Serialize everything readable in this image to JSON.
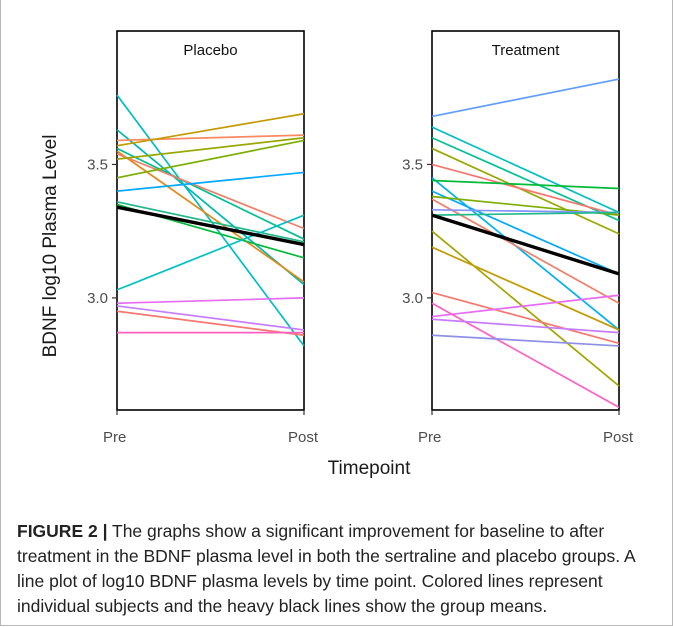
{
  "figure": {
    "ylabel": "BDNF log10 Plasma Level",
    "xlabel": "Timepoint",
    "colors": {
      "mean": "#000000",
      "panel_border": "#000000"
    }
  },
  "chart_data": [
    {
      "type": "line",
      "title": "Placebo",
      "categories": [
        "Pre",
        "Post"
      ],
      "ylim": [
        2.58,
        4.0
      ],
      "yticks": [
        3.0,
        3.5
      ],
      "ytick_labels": [
        "3.0",
        "3.5"
      ],
      "grid": false,
      "series": [
        {
          "color": "#00BFC4",
          "values": [
            3.76,
            2.82
          ]
        },
        {
          "color": "#00B8B0",
          "values": [
            3.63,
            3.05
          ]
        },
        {
          "color": "#00C094",
          "values": [
            3.56,
            3.22
          ]
        },
        {
          "color": "#FB8961",
          "values": [
            3.59,
            3.61
          ]
        },
        {
          "color": "#C49A00",
          "values": [
            3.57,
            3.69
          ]
        },
        {
          "color": "#E68613",
          "values": [
            3.55,
            3.06
          ]
        },
        {
          "color": "#F07F6A",
          "values": [
            3.54,
            3.26
          ]
        },
        {
          "color": "#99A800",
          "values": [
            3.52,
            3.6
          ]
        },
        {
          "color": "#7CAE00",
          "values": [
            3.45,
            3.59
          ]
        },
        {
          "color": "#00A9FF",
          "values": [
            3.4,
            3.47
          ]
        },
        {
          "color": "#00BA38",
          "values": [
            3.35,
            3.15
          ]
        },
        {
          "color": "#21B98A",
          "values": [
            3.36,
            3.21
          ]
        },
        {
          "color": "#00C1C6",
          "values": [
            3.03,
            3.31
          ]
        },
        {
          "color": "#E76BF3",
          "values": [
            2.98,
            3.0
          ]
        },
        {
          "color": "#C77CFF",
          "values": [
            2.97,
            2.88
          ]
        },
        {
          "color": "#F8766D",
          "values": [
            2.95,
            2.86
          ]
        },
        {
          "color": "#FF61C3",
          "values": [
            2.87,
            2.87
          ]
        },
        {
          "color": "#000000",
          "values": [
            3.34,
            3.2
          ],
          "mean": true
        }
      ]
    },
    {
      "type": "line",
      "title": "Treatment",
      "categories": [
        "Pre",
        "Post"
      ],
      "ylim": [
        2.58,
        4.0
      ],
      "yticks": [
        3.0,
        3.5
      ],
      "ytick_labels": [
        "3.0",
        "3.5"
      ],
      "grid": false,
      "series": [
        {
          "color": "#619CFF",
          "values": [
            3.68,
            3.82
          ]
        },
        {
          "color": "#00BFC4",
          "values": [
            3.64,
            3.32
          ]
        },
        {
          "color": "#00C094",
          "values": [
            3.6,
            3.29
          ]
        },
        {
          "color": "#99A800",
          "values": [
            3.56,
            3.24
          ]
        },
        {
          "color": "#F8766D",
          "values": [
            3.5,
            3.31
          ]
        },
        {
          "color": "#00B0F6",
          "values": [
            3.45,
            2.88
          ]
        },
        {
          "color": "#00BA38",
          "values": [
            3.44,
            3.41
          ]
        },
        {
          "color": "#00A9FF",
          "values": [
            3.4,
            3.09
          ]
        },
        {
          "color": "#7CAE00",
          "values": [
            3.38,
            3.31
          ]
        },
        {
          "color": "#F07F6A",
          "values": [
            3.37,
            2.98
          ]
        },
        {
          "color": "#8494FF",
          "values": [
            3.33,
            3.32
          ]
        },
        {
          "color": "#21B98A",
          "values": [
            3.31,
            3.32
          ]
        },
        {
          "color": "#A3A500",
          "values": [
            3.25,
            2.67
          ]
        },
        {
          "color": "#C49A00",
          "values": [
            3.19,
            2.88
          ]
        },
        {
          "color": "#F8766D",
          "values": [
            3.02,
            2.83
          ]
        },
        {
          "color": "#E76BF3",
          "values": [
            2.93,
            3.01
          ]
        },
        {
          "color": "#FF61C3",
          "values": [
            2.98,
            2.59
          ]
        },
        {
          "color": "#C77CFF",
          "values": [
            2.92,
            2.87
          ]
        },
        {
          "color": "#8D8FE8",
          "values": [
            2.86,
            2.82
          ]
        },
        {
          "color": "#000000",
          "values": [
            3.31,
            3.09
          ],
          "mean": true
        }
      ]
    }
  ],
  "caption": {
    "label": "FIGURE 2 |",
    "text": " The graphs show a significant improvement for baseline to after treatment in the BDNF plasma level in both the sertraline and placebo groups. A line plot of log10 BDNF plasma levels by time point. Colored lines represent individual subjects and the heavy black lines show the group means."
  }
}
